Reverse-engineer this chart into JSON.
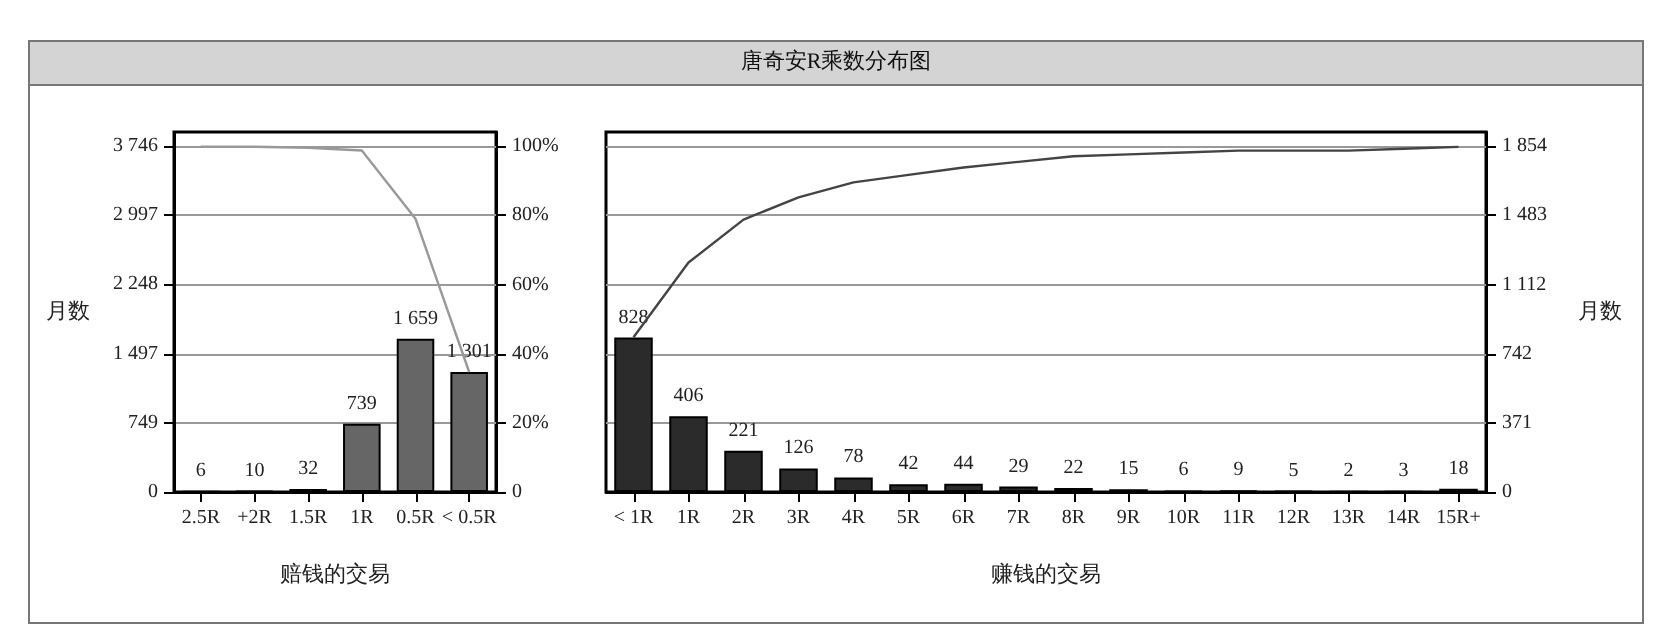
{
  "chart_data": [
    {
      "type": "other",
      "title": "唐奇安R乘数分布图"
    },
    {
      "type": "bar",
      "xlabel": "赔钱的交易",
      "ylabel": "月数",
      "categories": [
        "2.5R",
        "+2R",
        "1.5R",
        "1R",
        "0.5R",
        "< 0.5R"
      ],
      "series": [
        {
          "color": "#666666",
          "values": [
            6,
            10,
            32,
            739,
            1659,
            1301
          ],
          "value_labels": [
            "6",
            "10",
            "32",
            "739",
            "1 659",
            "1 301"
          ]
        },
        {
          "type": "line",
          "color": "#999999",
          "axis": "y",
          "values": [
            3740,
            3740,
            3730,
            3700,
            2960,
            1300
          ]
        }
      ],
      "ylim": [
        0,
        3900
      ],
      "yticks": [
        0,
        749,
        {
          "value": 1497,
          "label": "1 497"
        },
        {
          "value": 2248,
          "label": "2 248"
        },
        {
          "value": 2997,
          "label": "2 997"
        },
        {
          "value": 3746,
          "label": "3 746"
        }
      ],
      "y2lim": [
        0,
        104.1
      ],
      "y2ticks": [
        0,
        {
          "value": 20,
          "label": "20%"
        },
        {
          "value": 40,
          "label": "40%"
        },
        {
          "value": 60,
          "label": "60%"
        },
        {
          "value": 80,
          "label": "80%"
        },
        {
          "value": 100,
          "label": "100%"
        }
      ],
      "grid": "y",
      "marker": "none"
    },
    {
      "type": "bar",
      "xlabel": "赚钱的交易",
      "y2label": "月数",
      "categories": [
        "< 1R",
        "1R",
        "2R",
        "3R",
        "4R",
        "5R",
        "6R",
        "7R",
        "8R",
        "9R",
        "10R",
        "11R",
        "12R",
        "13R",
        "14R",
        "15R+"
      ],
      "series": [
        {
          "color": "#2b2b2b",
          "axis": "y2",
          "values": [
            828,
            406,
            221,
            126,
            78,
            42,
            44,
            29,
            22,
            15,
            6,
            9,
            5,
            2,
            3,
            18
          ],
          "value_labels": [
            "828",
            "406",
            "221",
            "126",
            "78",
            "42",
            "44",
            "29",
            "22",
            "15",
            "6",
            "9",
            "5",
            "2",
            "3",
            "18"
          ]
        },
        {
          "type": "line",
          "color": "#444444",
          "axis": "y2",
          "values": [
            830,
            1230,
            1460,
            1580,
            1660,
            1700,
            1740,
            1770,
            1800,
            1810,
            1820,
            1830,
            1830,
            1830,
            1840,
            1850
          ]
        }
      ],
      "y2lim": [
        0,
        1930
      ],
      "y2ticks": [
        0,
        371,
        742,
        {
          "value": 1112,
          "label": "1 112"
        },
        {
          "value": 1483,
          "label": "1 483"
        },
        {
          "value": 1854,
          "label": "1 854"
        }
      ],
      "grid": "y",
      "marker": "none"
    }
  ]
}
